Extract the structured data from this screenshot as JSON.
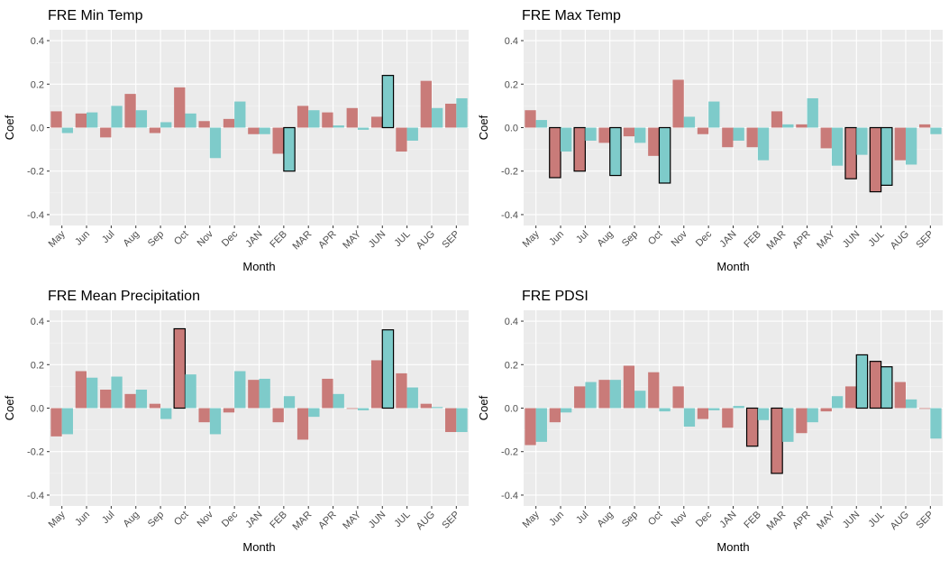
{
  "chart_data": [
    {
      "type": "bar",
      "title": "FRE Min Temp",
      "xlabel": "Month",
      "ylabel": "Coef",
      "ylim": [
        -0.45,
        0.45
      ],
      "yticks": [
        -0.4,
        -0.2,
        0.0,
        0.2,
        0.4
      ],
      "ytick_labels": [
        "-0.4",
        "-0.2",
        "0.0",
        "0.2",
        "0.4"
      ],
      "categories": [
        "May",
        "Jun",
        "Jul",
        "Aug",
        "Sep",
        "Oct",
        "Nov",
        "Dec",
        "JAN",
        "FEB",
        "MAR",
        "APR",
        "MAY",
        "JUN",
        "JUL",
        "AUG",
        "SEP"
      ],
      "series": [
        {
          "color": "#c97b79",
          "values": [
            0.075,
            0.065,
            -0.045,
            0.155,
            -0.025,
            0.185,
            0.03,
            0.04,
            -0.03,
            -0.12,
            0.1,
            0.07,
            0.09,
            0.05,
            -0.11,
            0.215,
            0.11
          ],
          "significant": [
            false,
            false,
            false,
            false,
            false,
            false,
            false,
            false,
            false,
            false,
            false,
            false,
            false,
            false,
            false,
            false,
            false
          ]
        },
        {
          "color": "#7ecbca",
          "values": [
            -0.025,
            0.07,
            0.1,
            0.08,
            0.025,
            0.065,
            -0.14,
            0.12,
            -0.03,
            -0.2,
            0.08,
            0.01,
            -0.01,
            0.24,
            -0.06,
            0.09,
            0.135
          ],
          "significant": [
            false,
            false,
            false,
            false,
            false,
            false,
            false,
            false,
            false,
            true,
            false,
            false,
            false,
            true,
            false,
            false,
            false
          ]
        }
      ]
    },
    {
      "type": "bar",
      "title": "FRE Max Temp",
      "xlabel": "Month",
      "ylabel": "Coef",
      "ylim": [
        -0.45,
        0.45
      ],
      "yticks": [
        -0.4,
        -0.2,
        0.0,
        0.2,
        0.4
      ],
      "ytick_labels": [
        "-0.4",
        "-0.2",
        "0.0",
        "0.2",
        "0.4"
      ],
      "categories": [
        "May",
        "Jun",
        "Jul",
        "Aug",
        "Sep",
        "Oct",
        "Nov",
        "Dec",
        "JAN",
        "FEB",
        "MAR",
        "APR",
        "MAY",
        "JUN",
        "JUL",
        "AUG",
        "SEP"
      ],
      "series": [
        {
          "color": "#c97b79",
          "values": [
            0.08,
            -0.23,
            -0.2,
            -0.07,
            -0.04,
            -0.13,
            0.22,
            -0.03,
            -0.09,
            -0.09,
            0.075,
            0.015,
            -0.095,
            -0.235,
            -0.295,
            -0.15,
            0.015
          ],
          "significant": [
            false,
            true,
            true,
            false,
            false,
            false,
            false,
            false,
            false,
            false,
            false,
            false,
            false,
            true,
            true,
            false,
            false
          ]
        },
        {
          "color": "#7ecbca",
          "values": [
            0.035,
            -0.11,
            -0.06,
            -0.22,
            -0.07,
            -0.255,
            0.05,
            0.12,
            -0.06,
            -0.15,
            0.015,
            0.135,
            -0.175,
            -0.125,
            -0.265,
            -0.17,
            -0.03
          ],
          "significant": [
            false,
            false,
            false,
            true,
            false,
            true,
            false,
            false,
            false,
            false,
            false,
            false,
            false,
            false,
            true,
            false,
            false
          ]
        }
      ]
    },
    {
      "type": "bar",
      "title": "FRE Mean Precipitation",
      "xlabel": "Month",
      "ylabel": "Coef",
      "ylim": [
        -0.45,
        0.45
      ],
      "yticks": [
        -0.4,
        -0.2,
        0.0,
        0.2,
        0.4
      ],
      "ytick_labels": [
        "-0.4",
        "-0.2",
        "0.0",
        "0.2",
        "0.4"
      ],
      "categories": [
        "May",
        "Jun",
        "Jul",
        "Aug",
        "Sep",
        "Oct",
        "Nov",
        "Dec",
        "JAN",
        "FEB",
        "MAR",
        "APR",
        "MAY",
        "JUN",
        "JUL",
        "AUG",
        "SEP"
      ],
      "series": [
        {
          "color": "#c97b79",
          "values": [
            -0.13,
            0.17,
            0.085,
            0.065,
            0.02,
            0.365,
            -0.065,
            -0.02,
            0.13,
            -0.065,
            -0.145,
            0.135,
            0.0,
            0.22,
            0.16,
            0.02,
            -0.11
          ],
          "significant": [
            false,
            false,
            false,
            false,
            false,
            true,
            false,
            false,
            false,
            false,
            false,
            false,
            false,
            false,
            false,
            false,
            false
          ]
        },
        {
          "color": "#7ecbca",
          "values": [
            -0.12,
            0.14,
            0.145,
            0.085,
            -0.05,
            0.155,
            -0.12,
            0.17,
            0.135,
            0.055,
            -0.04,
            0.065,
            -0.01,
            0.36,
            0.095,
            0.005,
            -0.11
          ],
          "significant": [
            false,
            false,
            false,
            false,
            false,
            false,
            false,
            false,
            false,
            false,
            false,
            false,
            false,
            true,
            false,
            false,
            false
          ]
        }
      ]
    },
    {
      "type": "bar",
      "title": "FRE PDSI",
      "xlabel": "Month",
      "ylabel": "Coef",
      "ylim": [
        -0.45,
        0.45
      ],
      "yticks": [
        -0.4,
        -0.2,
        0.0,
        0.2,
        0.4
      ],
      "ytick_labels": [
        "-0.4",
        "-0.2",
        "0.0",
        "0.2",
        "0.4"
      ],
      "categories": [
        "May",
        "Jun",
        "Jul",
        "Aug",
        "Sep",
        "Oct",
        "Nov",
        "Dec",
        "JAN",
        "FEB",
        "MAR",
        "APR",
        "MAY",
        "JUN",
        "JUL",
        "AUG",
        "SEP"
      ],
      "series": [
        {
          "color": "#c97b79",
          "values": [
            -0.17,
            -0.065,
            0.1,
            0.13,
            0.195,
            0.165,
            0.1,
            -0.05,
            -0.09,
            -0.175,
            -0.3,
            -0.115,
            -0.015,
            0.1,
            0.215,
            0.12,
            0.0
          ],
          "significant": [
            false,
            false,
            false,
            false,
            false,
            false,
            false,
            false,
            false,
            true,
            true,
            false,
            false,
            false,
            true,
            false,
            false
          ]
        },
        {
          "color": "#7ecbca",
          "values": [
            -0.155,
            -0.02,
            0.12,
            0.13,
            0.08,
            -0.015,
            -0.085,
            -0.01,
            0.01,
            -0.055,
            -0.155,
            -0.065,
            0.055,
            0.245,
            0.19,
            0.04,
            -0.14
          ],
          "significant": [
            false,
            false,
            false,
            false,
            false,
            false,
            false,
            false,
            false,
            false,
            false,
            false,
            false,
            true,
            true,
            false,
            false
          ]
        }
      ]
    }
  ]
}
